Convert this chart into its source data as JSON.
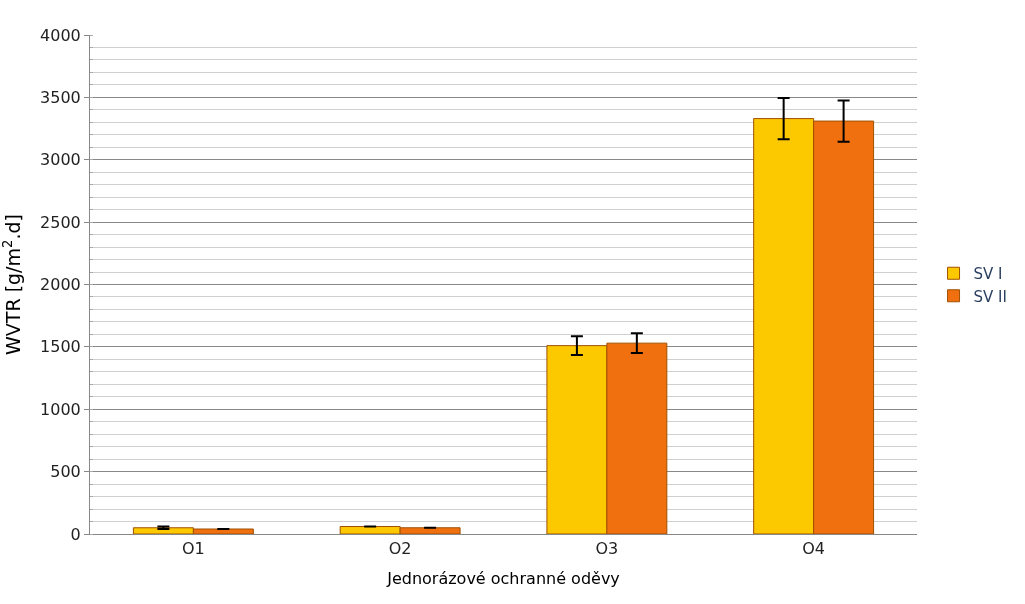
{
  "chart_data": {
    "type": "bar",
    "xlabel": "Jednorázové ochranné oděvy",
    "ylabel": "WVTR [g/m$^{2}$.d]",
    "categories": [
      "O1",
      "O2",
      "O3",
      "O4"
    ],
    "series": [
      {
        "name": "SV I",
        "color": "#fcc800",
        "values": [
          50,
          60,
          1510,
          3330
        ],
        "errors": [
          10,
          null,
          75,
          165
        ]
      },
      {
        "name": "SV II",
        "color": "#f07010",
        "values": [
          40,
          50,
          1530,
          3310
        ],
        "errors": [
          null,
          null,
          80,
          165
        ]
      }
    ],
    "ylim": [
      0,
      4000
    ],
    "yticks": [
      0,
      500,
      1000,
      1500,
      2000,
      2500,
      3000,
      3500,
      4000
    ],
    "grid": "y",
    "legend": "right"
  }
}
